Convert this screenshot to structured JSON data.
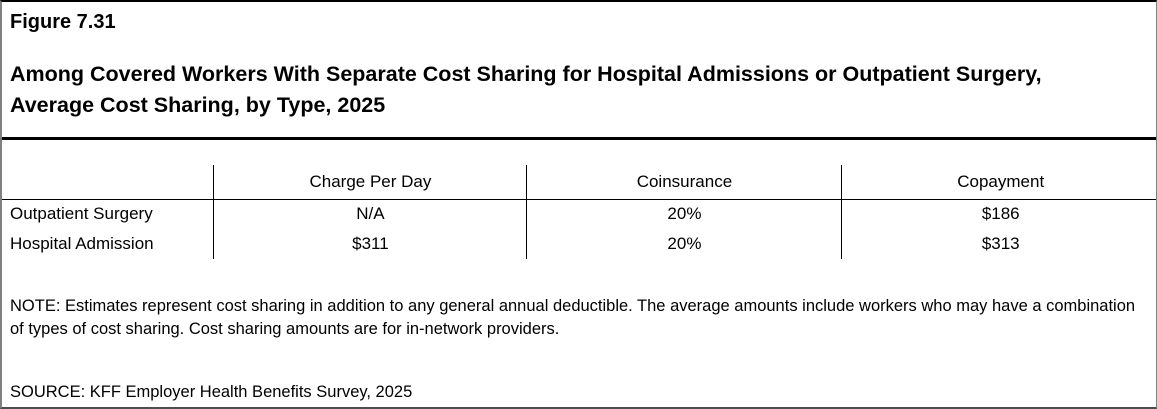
{
  "header": {
    "figure_label": "Figure 7.31",
    "title": "Among Covered Workers With Separate Cost Sharing for Hospital Admissions or Outpatient Surgery, Average Cost Sharing, by Type, 2025"
  },
  "chart_data": {
    "type": "table",
    "title": "Among Covered Workers With Separate Cost Sharing for Hospital Admissions or Outpatient Surgery, Average Cost Sharing, by Type, 2025",
    "columns": [
      "",
      "Charge Per Day",
      "Coinsurance",
      "Copayment"
    ],
    "rows": [
      {
        "label": "Outpatient Surgery",
        "values": [
          "N/A",
          "20%",
          "$186"
        ]
      },
      {
        "label": "Hospital Admission",
        "values": [
          "$311",
          "20%",
          "$313"
        ]
      }
    ]
  },
  "footer": {
    "note": "NOTE: Estimates represent cost sharing in addition to any general annual deductible. The average amounts include workers who may have a combination of types of cost sharing. Cost sharing amounts are for in-network providers.",
    "source": "SOURCE: KFF Employer Health Benefits Survey, 2025"
  },
  "colors": {
    "text": "#000000",
    "title_rule": "#000000",
    "table_lines": "#000000",
    "frame_sides": "#808080",
    "background": "#ffffff"
  }
}
